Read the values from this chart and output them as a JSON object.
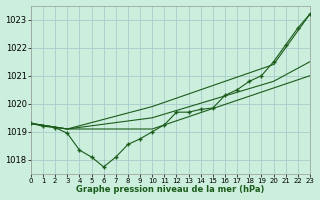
{
  "bg_color": "#cceedd",
  "grid_color": "#aacccc",
  "line_color": "#1a5c1a",
  "xlabel": "Graphe pression niveau de la mer (hPa)",
  "xlim": [
    0,
    23
  ],
  "ylim": [
    1017.5,
    1023.5
  ],
  "yticks": [
    1018,
    1019,
    1020,
    1021,
    1022,
    1023
  ],
  "xticks": [
    0,
    1,
    2,
    3,
    4,
    5,
    6,
    7,
    8,
    9,
    10,
    11,
    12,
    13,
    14,
    15,
    16,
    17,
    18,
    19,
    20,
    21,
    22,
    23
  ],
  "line1_x": [
    0,
    1,
    2,
    3,
    4,
    5,
    6,
    7,
    8,
    9,
    10,
    11,
    12,
    13,
    14,
    15,
    16,
    17,
    18,
    19,
    20,
    21,
    22,
    23
  ],
  "line1_y": [
    1019.3,
    1019.2,
    1019.15,
    1018.95,
    1018.35,
    1018.1,
    1017.75,
    1018.1,
    1018.55,
    1018.75,
    1019.0,
    1019.25,
    1019.7,
    1019.7,
    1019.8,
    1019.85,
    1020.3,
    1020.5,
    1020.8,
    1021.0,
    1021.5,
    1022.1,
    1022.7,
    1023.2
  ],
  "line2_x": [
    0,
    3,
    10,
    23
  ],
  "line2_y": [
    1019.3,
    1019.1,
    1019.1,
    1021.0
  ],
  "line3_x": [
    0,
    3,
    10,
    20,
    23
  ],
  "line3_y": [
    1019.3,
    1019.1,
    1019.5,
    1020.8,
    1021.5
  ],
  "line4_x": [
    0,
    3,
    10,
    20,
    23
  ],
  "line4_y": [
    1019.3,
    1019.1,
    1019.9,
    1021.4,
    1023.2
  ]
}
